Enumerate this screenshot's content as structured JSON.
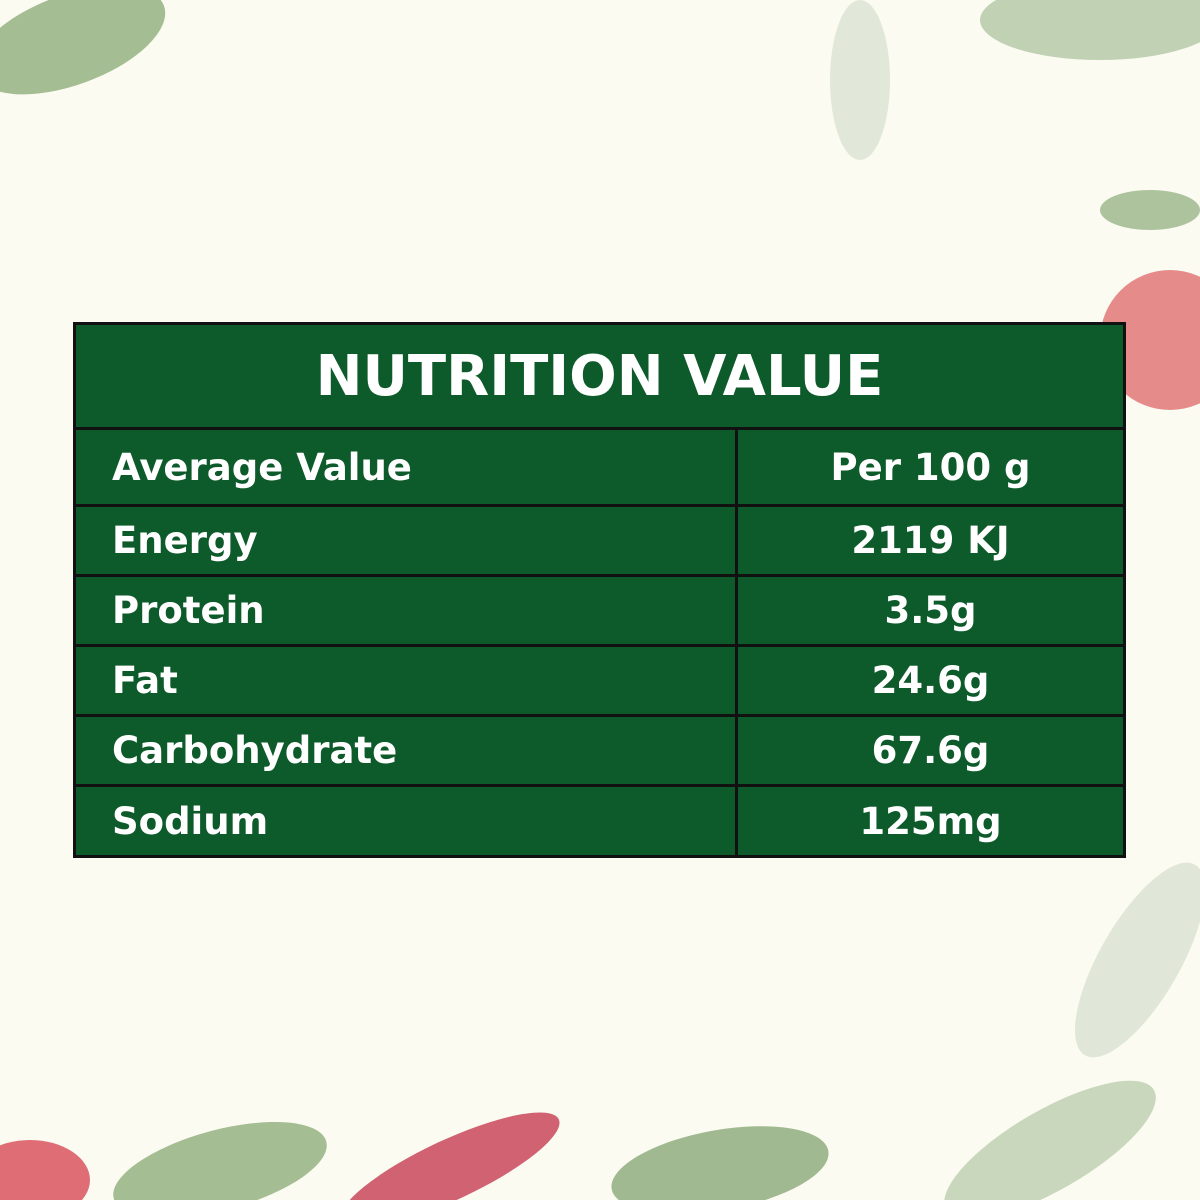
{
  "title": "NUTRITION VALUE",
  "table": {
    "rows": [
      [
        "Average Value",
        "Per 100 g"
      ],
      [
        "Energy",
        "2119 KJ"
      ],
      [
        "Protein",
        "3.5g"
      ],
      [
        "Fat",
        "24.6g"
      ],
      [
        "Carbohydrate",
        "67.6g"
      ],
      [
        "Sodium",
        "125mg"
      ]
    ]
  }
}
